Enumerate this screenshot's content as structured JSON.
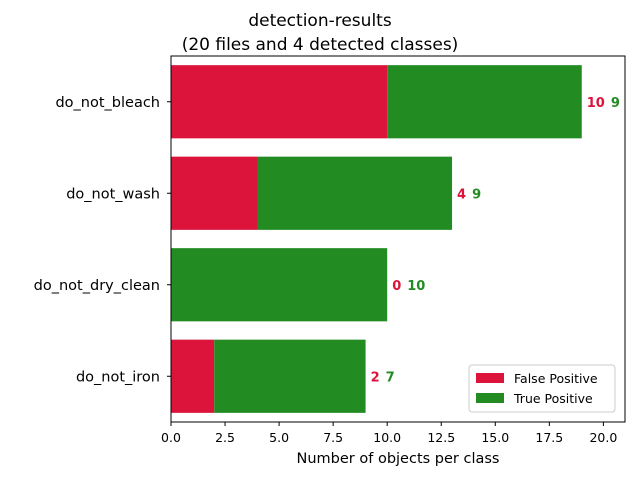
{
  "chart_data": {
    "type": "bar",
    "orientation": "horizontal",
    "stacked": true,
    "title": "detection-results",
    "subtitle": "(20 files and 4 detected classes)",
    "xlabel": "Number of objects per class",
    "ylabel": "",
    "xlim": [
      0,
      21
    ],
    "x_ticks": [
      "0.0",
      "2.5",
      "5.0",
      "7.5",
      "10.0",
      "12.5",
      "15.0",
      "17.5",
      "20.0"
    ],
    "categories": [
      "do_not_bleach",
      "do_not_wash",
      "do_not_dry_clean",
      "do_not_iron"
    ],
    "series": [
      {
        "name": "False Positive",
        "color": "#dc143c",
        "values": [
          10,
          4,
          0,
          2
        ]
      },
      {
        "name": "True Positive",
        "color": "#228b22",
        "values": [
          9,
          9,
          10,
          7
        ]
      }
    ],
    "legend": {
      "placement": "lower-right"
    },
    "grid": false,
    "data_labels": true
  }
}
